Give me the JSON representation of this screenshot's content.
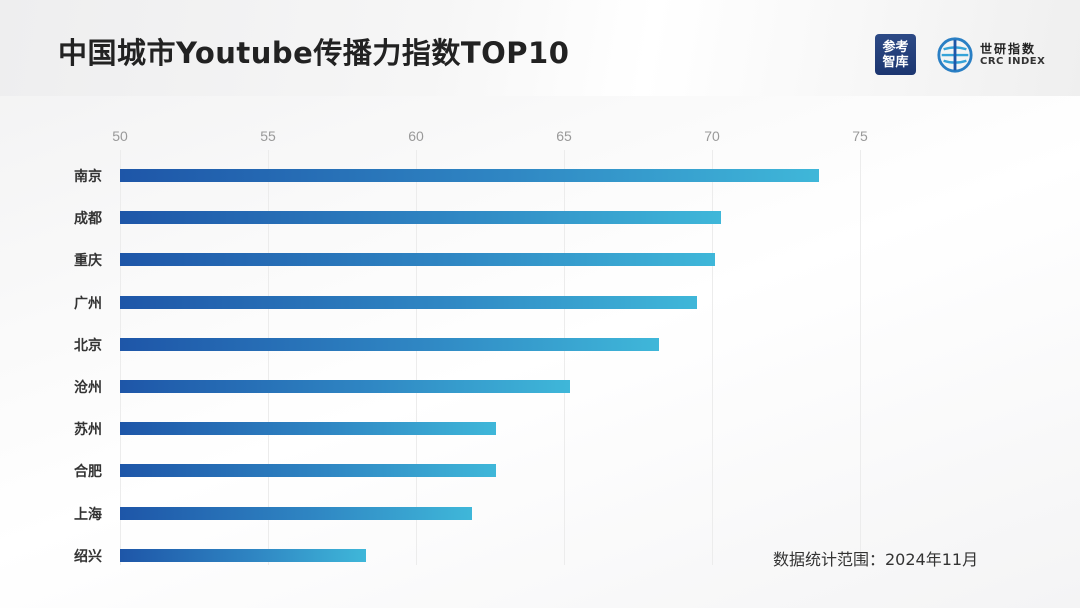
{
  "header": {
    "title": "中国城市Youtube传播力指数TOP10",
    "logo1": {
      "line1": "参考",
      "line2": "智库"
    },
    "logo2": {
      "cn": "世研指数",
      "en": "CRC INDEX"
    }
  },
  "note": "数据统计范围：2024年11月",
  "colors": {
    "bar_start": "#1e56a8",
    "bar_end": "#3fb7d9",
    "title": "#222222",
    "tick": "#999999"
  },
  "chart_data": {
    "type": "bar",
    "orientation": "horizontal",
    "title": "中国城市Youtube传播力指数TOP10",
    "xlabel": "",
    "ylabel": "",
    "xlim": [
      50,
      75
    ],
    "x_ticks": [
      "50",
      "55",
      "60",
      "65",
      "70",
      "75"
    ],
    "tick_position": "top",
    "grid": true,
    "categories": [
      "南京",
      "成都",
      "重庆",
      "广州",
      "北京",
      "沧州",
      "苏州",
      "合肥",
      "上海",
      "绍兴"
    ],
    "values": [
      73.6,
      70.3,
      70.1,
      69.5,
      68.2,
      65.2,
      62.7,
      62.7,
      61.9,
      58.3
    ],
    "annotation": "数据统计范围：2024年11月"
  }
}
